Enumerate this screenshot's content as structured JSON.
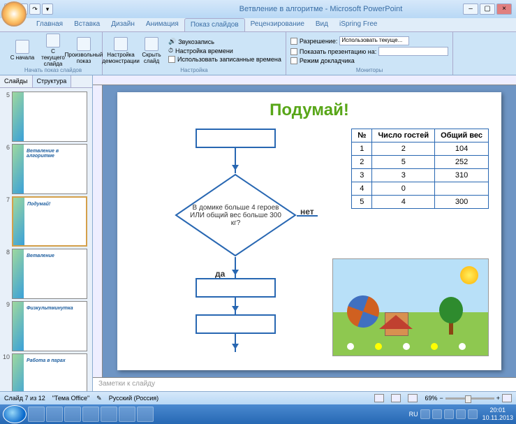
{
  "window": {
    "title": "Ветвление в алгоритме - Microsoft PowerPoint"
  },
  "tabs": [
    "Главная",
    "Вставка",
    "Дизайн",
    "Анимация",
    "Показ слайдов",
    "Рецензирование",
    "Вид",
    "iSpring Free"
  ],
  "activeTab": 4,
  "ribbon": {
    "g1": {
      "name": "Начать показ слайдов",
      "b1": "С начала",
      "b2": "С текущего слайда",
      "b3": "Произвольный показ"
    },
    "g2": {
      "name": "Настройка",
      "b1": "Настройка демонстрации",
      "b2": "Скрыть слайд",
      "c1": "Звукозапись",
      "c2": "Настройка времени",
      "c3": "Использовать записанные времена"
    },
    "g3": {
      "name": "Мониторы",
      "l1": "Разрешение:",
      "v1": "Использовать текуще...",
      "l2": "Показать презентацию на:",
      "c1": "Режим докладчика"
    }
  },
  "leftTabs": {
    "t1": "Слайды",
    "t2": "Структура"
  },
  "thumbs": [
    {
      "n": "5",
      "caption": ""
    },
    {
      "n": "6",
      "caption": "Ветвление в алгоритме"
    },
    {
      "n": "7",
      "caption": "Подумай!",
      "sel": true
    },
    {
      "n": "8",
      "caption": "Ветвление"
    },
    {
      "n": "9",
      "caption": "Физкультминутка"
    },
    {
      "n": "10",
      "caption": "Работа в парах"
    }
  ],
  "slide": {
    "title": "Подумай!",
    "diamond": "В домике больше 4 героев ИЛИ общий вес больше 300 кг?",
    "yes": "да",
    "no": "нет",
    "table": {
      "headers": [
        "№",
        "Число гостей",
        "Общий вес"
      ],
      "rows": [
        [
          "1",
          "2",
          "104"
        ],
        [
          "2",
          "5",
          "252"
        ],
        [
          "3",
          "3",
          "310"
        ],
        [
          "4",
          "0",
          ""
        ],
        [
          "5",
          "4",
          "300"
        ]
      ]
    },
    "colors": {
      "border": "#2867b2",
      "title": "#58a618"
    }
  },
  "notes": "Заметки к слайду",
  "status": {
    "slide": "Слайд 7 из 12",
    "theme": "\"Тема Office\"",
    "lang": "Русский (Россия)",
    "zoom": "69%"
  },
  "taskbar": {
    "time": "20:01",
    "date": "10.11.2013",
    "lang": "RU"
  }
}
